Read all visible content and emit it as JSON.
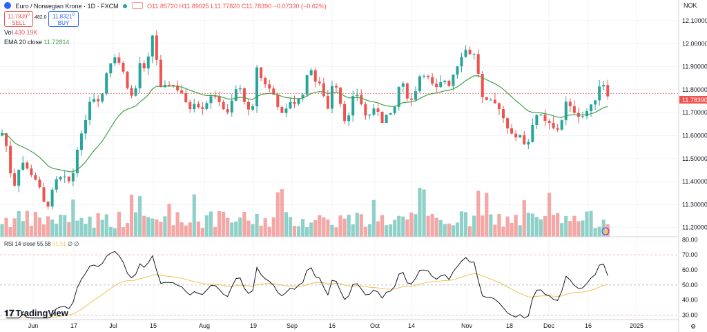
{
  "header": {
    "symbol": "Euro / Norwegian Krone · 1D · FXCM",
    "open": "O11.85720",
    "high": "H11.89025",
    "low": "L11.77820",
    "close": "C11.78390",
    "change": "−0.07330 (−0.62%)"
  },
  "trade": {
    "sell_price": "11.7839",
    "sell_sup": "0",
    "sell_label": "SELL",
    "spread": "482.0",
    "buy_price": "11.8321",
    "buy_sup": "0",
    "buy_label": "BUY"
  },
  "volume_legend": {
    "label": "Vol",
    "value": "430.19K"
  },
  "ema_legend": {
    "label": "EMA 20 close",
    "value": "11.72814"
  },
  "rsi_legend": {
    "label": "RSI 14 close",
    "value": "55.58",
    "ma_value": "51.51",
    "extra1": "∅",
    "extra2": "∅"
  },
  "currency": "NOK",
  "current_price_label": "11.78390",
  "logo_text": "TradingView",
  "colors": {
    "up": "#26a69a",
    "down": "#ef5350",
    "ema": "#43a047",
    "rsi": "#131722",
    "rsi_ma": "#f0c24f"
  },
  "chart_data": {
    "type": "candlestick",
    "title": "Euro / Norwegian Krone · 1D · FXCM",
    "price_axis": {
      "ticks": [
        11.2,
        11.3,
        11.4,
        11.5,
        11.6,
        11.7,
        11.8,
        11.9,
        12.0,
        12.1
      ],
      "labels": [
        "11.20000",
        "11.30000",
        "11.40000",
        "11.50000",
        "11.60000",
        "11.70000",
        "11.80000",
        "11.90000",
        "12.00000",
        "12.10000"
      ],
      "range": [
        11.16,
        12.16
      ]
    },
    "x_labels": [
      "Jun",
      "17",
      "Jul",
      "15",
      "Aug",
      "19",
      "Sep",
      "16",
      "Oct",
      "14",
      "Nov",
      "18",
      "Dec",
      "16",
      "2025"
    ],
    "rsi_axis": {
      "ticks": [
        30,
        40,
        50,
        60,
        70,
        80
      ],
      "labels": [
        "30.00",
        "40.00",
        "50.00",
        "60.00",
        "70.00",
        "80.00"
      ],
      "range": [
        27,
        82
      ],
      "levels": [
        70,
        50,
        30
      ]
    },
    "rsi_value": 55.58,
    "rsi_ma_value": 51.51,
    "ema_last": 11.72814,
    "last_close": 11.7839,
    "last_volume": "430.19K"
  }
}
